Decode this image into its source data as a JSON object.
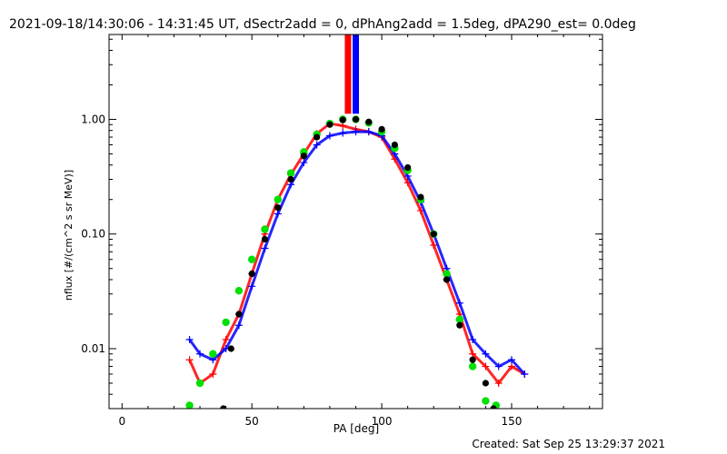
{
  "chart_data": {
    "type": "scatter",
    "title": "2021-09-18/14:30:06 - 14:31:45 UT, dSectr2add = 0, dPhAng2add = 1.5deg, dPA290_est=  0.0deg",
    "xlabel": "PA [deg]",
    "ylabel": "nflux [#/(cm^2 s sr MeV)]",
    "footer": "Created: Sat Sep 25 13:29:37 2021",
    "x_range": [
      -5,
      185
    ],
    "y_range": [
      0.003,
      5.5
    ],
    "y_scale": "log",
    "x_ticks": [
      0,
      50,
      100,
      150
    ],
    "y_ticks": [
      {
        "value": 0.01,
        "label": "0.01"
      },
      {
        "value": 0.1,
        "label": "0.10"
      },
      {
        "value": 1.0,
        "label": "1.00"
      }
    ],
    "colors": {
      "red": "#ff0000",
      "blue": "#0000ff",
      "green": "#00e000",
      "black": "#000000"
    },
    "series": [
      {
        "color": "red",
        "marker": "plus",
        "x": [
          26,
          30,
          35,
          40,
          45,
          50,
          55,
          60,
          65,
          70,
          75,
          80,
          85,
          90,
          95,
          100,
          105,
          110,
          115,
          120,
          125,
          130,
          135,
          140,
          145,
          150,
          155
        ],
        "y": [
          0.008,
          0.005,
          0.006,
          0.012,
          0.02,
          0.045,
          0.1,
          0.2,
          0.33,
          0.5,
          0.75,
          0.92,
          0.88,
          0.82,
          0.78,
          0.7,
          0.45,
          0.28,
          0.16,
          0.08,
          0.04,
          0.02,
          0.009,
          0.007,
          0.005,
          0.007,
          0.006
        ]
      },
      {
        "color": "blue",
        "marker": "plus",
        "x": [
          26,
          30,
          35,
          40,
          45,
          50,
          55,
          60,
          65,
          70,
          75,
          80,
          85,
          90,
          95,
          100,
          105,
          110,
          115,
          120,
          125,
          130,
          135,
          140,
          145,
          150,
          155
        ],
        "y": [
          0.012,
          0.009,
          0.008,
          0.01,
          0.016,
          0.035,
          0.075,
          0.15,
          0.27,
          0.42,
          0.6,
          0.72,
          0.76,
          0.78,
          0.78,
          0.72,
          0.5,
          0.32,
          0.19,
          0.1,
          0.05,
          0.025,
          0.012,
          0.009,
          0.007,
          0.008,
          0.006
        ]
      },
      {
        "color": "green",
        "marker": "circle",
        "x": [
          26,
          30,
          35,
          40,
          45,
          50,
          55,
          60,
          65,
          70,
          75,
          80,
          85,
          90,
          95,
          100,
          105,
          110,
          115,
          120,
          125,
          130,
          135,
          140,
          144
        ],
        "y": [
          0.0032,
          0.005,
          0.009,
          0.017,
          0.032,
          0.06,
          0.11,
          0.2,
          0.34,
          0.52,
          0.74,
          0.92,
          1.0,
          1.0,
          0.93,
          0.78,
          0.56,
          0.36,
          0.2,
          0.1,
          0.045,
          0.018,
          0.007,
          0.0035,
          0.0032
        ]
      },
      {
        "color": "black",
        "marker": "circle",
        "x": [
          39,
          42,
          45,
          50,
          55,
          60,
          65,
          70,
          75,
          80,
          85,
          90,
          95,
          100,
          105,
          110,
          115,
          120,
          125,
          130,
          135,
          140,
          143
        ],
        "y": [
          0.003,
          0.01,
          0.02,
          0.045,
          0.09,
          0.17,
          0.3,
          0.48,
          0.7,
          0.9,
          0.99,
          1.0,
          0.95,
          0.82,
          0.6,
          0.38,
          0.21,
          0.1,
          0.04,
          0.016,
          0.008,
          0.005,
          0.003
        ]
      }
    ],
    "vertical_markers": [
      {
        "color": "red",
        "x": 87,
        "y_from": 1.12,
        "y_to": 5.5
      },
      {
        "color": "blue",
        "x": 90,
        "y_from": 1.12,
        "y_to": 5.5
      }
    ]
  }
}
